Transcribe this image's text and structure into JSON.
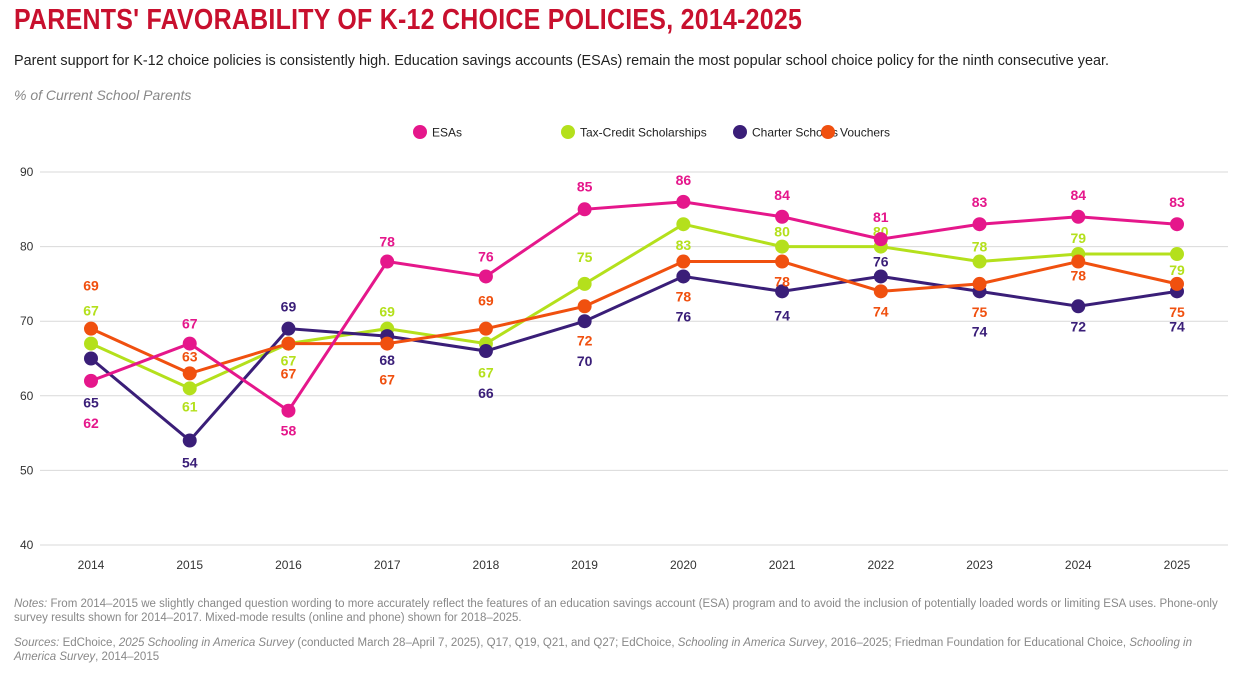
{
  "title": "PARENTS' FAVORABILITY OF K-12 CHOICE POLICIES, 2014-2025",
  "subtitle": "Parent support for K-12 choice policies is consistently high. Education savings accounts (ESAs) remain the most popular school choice policy for the ninth consecutive year.",
  "ylabel": "% of Current School Parents",
  "notes": {
    "label": "Notes:",
    "text": " From 2014–2015 we slightly changed question wording to more accurately reflect the features of an education savings account (ESA) program and to avoid the inclusion of potentially loaded words or limiting ESA uses. Phone-only survey results shown for 2014–2017. Mixed-mode results (online and phone) shown for 2018–2025."
  },
  "sources": {
    "label": "Sources:",
    "p1": " EdChoice, ",
    "i1": "2025 Schooling in America Survey",
    "p2": " (conducted March 28–April 7, 2025), Q17, Q19, Q21, and Q27; EdChoice, ",
    "i2": "Schooling in America Survey",
    "p3": ", 2016–2025; Friedman Foundation for Educational Choice, ",
    "i3": "Schooling in America Survey",
    "p4": ", 2014–2015"
  },
  "chart_data": {
    "type": "line",
    "x": [
      "2014",
      "2015",
      "2016",
      "2017",
      "2018",
      "2019",
      "2020",
      "2021",
      "2022",
      "2023",
      "2024",
      "2025"
    ],
    "ylim": [
      40,
      90
    ],
    "yticks": [
      40,
      50,
      60,
      70,
      80,
      90
    ],
    "grid": true,
    "legend": "top-center",
    "series": [
      {
        "name": "ESAs",
        "color": "#e5178b",
        "values": [
          62,
          67,
          58,
          78,
          76,
          85,
          86,
          84,
          81,
          83,
          84,
          83
        ]
      },
      {
        "name": "Tax-Credit Scholarships",
        "color": "#b4e01c",
        "values": [
          67,
          61,
          67,
          69,
          67,
          75,
          83,
          80,
          80,
          78,
          79,
          79
        ]
      },
      {
        "name": "Charter Schools",
        "color": "#3a1e78",
        "values": [
          65,
          54,
          69,
          68,
          66,
          70,
          76,
          74,
          76,
          74,
          72,
          74
        ]
      },
      {
        "name": "Vouchers",
        "color": "#f0500f",
        "values": [
          69,
          63,
          67,
          67,
          69,
          72,
          78,
          78,
          74,
          75,
          78,
          75
        ]
      }
    ]
  }
}
